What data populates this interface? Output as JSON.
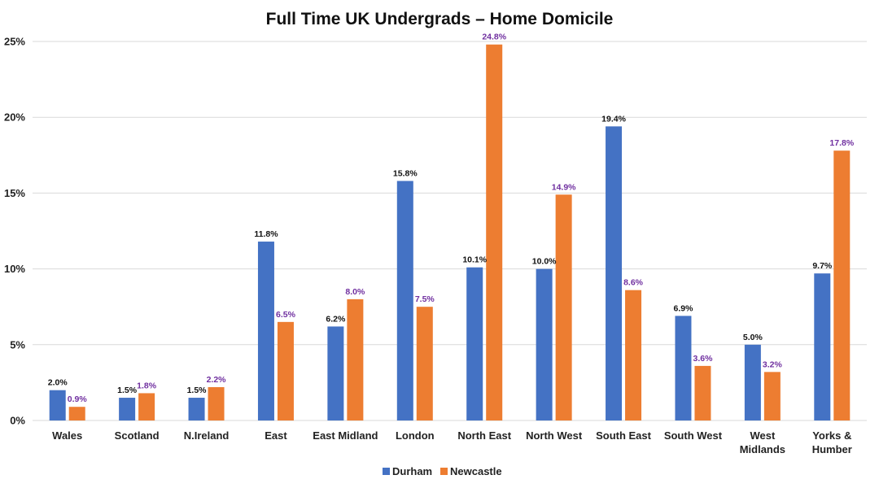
{
  "chart_data": {
    "type": "bar",
    "title": "Full Time UK Undergrads – Home Domicile",
    "xlabel": "",
    "ylabel": "",
    "ylim": [
      0,
      25
    ],
    "yticks": [
      0,
      5,
      10,
      15,
      20,
      25
    ],
    "ytick_labels": [
      "0%",
      "5%",
      "10%",
      "15%",
      "20%",
      "25%"
    ],
    "grid": true,
    "legend_position": "bottom",
    "categories": [
      "Wales",
      "Scotland",
      "N.Ireland",
      "East",
      "East Midland",
      "London",
      "North East",
      "North West",
      "South East",
      "South West",
      "West Midlands",
      "Yorks & Humber"
    ],
    "category_lines": [
      [
        "Wales"
      ],
      [
        "Scotland"
      ],
      [
        "N.Ireland"
      ],
      [
        "East"
      ],
      [
        "East Midland"
      ],
      [
        "London"
      ],
      [
        "North East"
      ],
      [
        "North West"
      ],
      [
        "South East"
      ],
      [
        "South West"
      ],
      [
        "West",
        "Midlands"
      ],
      [
        "Yorks &",
        "Humber"
      ]
    ],
    "series": [
      {
        "name": "Durham",
        "color": "#4472c4",
        "label_color": "#111111",
        "values": [
          2.0,
          1.5,
          1.5,
          11.8,
          6.2,
          15.8,
          10.1,
          10.0,
          19.4,
          6.9,
          5.0,
          9.7
        ],
        "labels": [
          "2.0%",
          "1.5%",
          "1.5%",
          "11.8%",
          "6.2%",
          "15.8%",
          "10.1%",
          "10.0%",
          "19.4%",
          "6.9%",
          "5.0%",
          "9.7%"
        ]
      },
      {
        "name": "Newcastle",
        "color": "#ed7d31",
        "label_color": "#7030a0",
        "values": [
          0.9,
          1.8,
          2.2,
          6.5,
          8.0,
          7.5,
          24.8,
          14.9,
          8.6,
          3.6,
          3.2,
          17.8
        ],
        "labels": [
          "0.9%",
          "1.8%",
          "2.2%",
          "6.5%",
          "8.0%",
          "7.5%",
          "24.8%",
          "14.9%",
          "8.6%",
          "3.6%",
          "3.2%",
          "17.8%"
        ]
      }
    ]
  }
}
